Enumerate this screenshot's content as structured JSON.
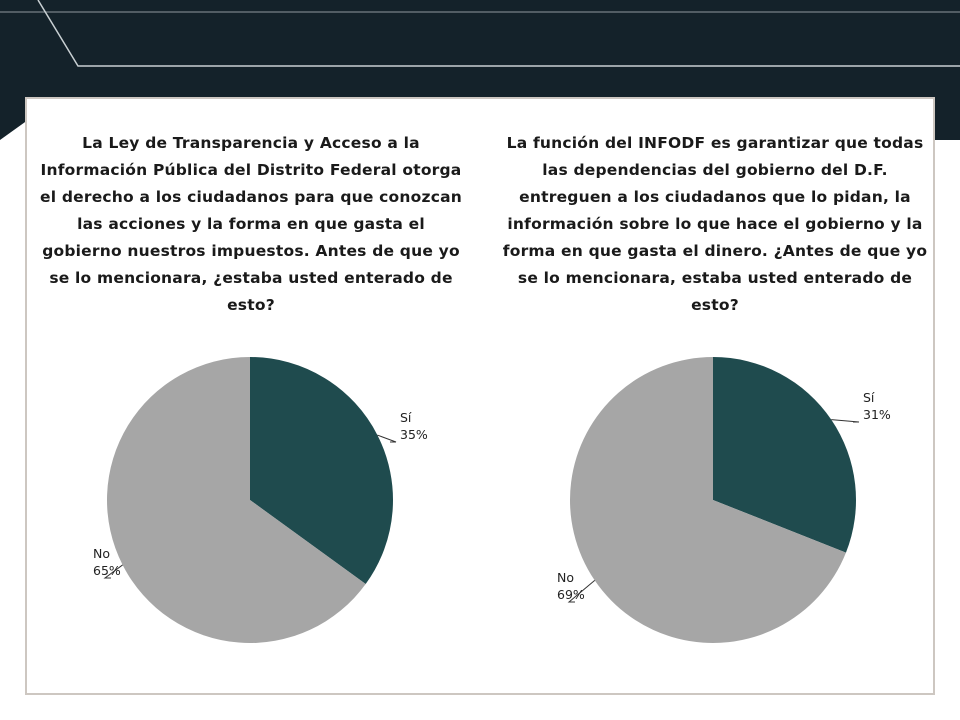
{
  "colors": {
    "header_dark": "#14222a",
    "accent_line": "#c9d0d3",
    "panel_border": "#cdc7c1",
    "slice_si": "#1f4b4e",
    "slice_no": "#a6a6a6"
  },
  "chart_data": [
    {
      "type": "pie",
      "title": "La Ley de Transparencia y Acceso a la Información Pública del Distrito Federal otorga el derecho a los ciudadanos para que conozcan las acciones y la forma en que gasta el gobierno nuestros impuestos. Antes de que yo se lo mencionara, ¿estaba usted enterado de esto?",
      "slices": [
        {
          "label": "Sí",
          "value": 35,
          "value_label": "35%",
          "color": "#1f4b4e"
        },
        {
          "label": "No",
          "value": 65,
          "value_label": "65%",
          "color": "#a6a6a6"
        }
      ]
    },
    {
      "type": "pie",
      "title": "La función del INFODF es garantizar que todas las dependencias del gobierno del D.F. entreguen a los ciudadanos que lo pidan, la información sobre lo que hace el gobierno y la forma en que gasta el dinero. ¿Antes de que yo se lo mencionara, estaba usted enterado de esto?",
      "slices": [
        {
          "label": "Sí",
          "value": 31,
          "value_label": "31%",
          "color": "#1f4b4e"
        },
        {
          "label": "No",
          "value": 69,
          "value_label": "69%",
          "color": "#a6a6a6"
        }
      ]
    }
  ]
}
